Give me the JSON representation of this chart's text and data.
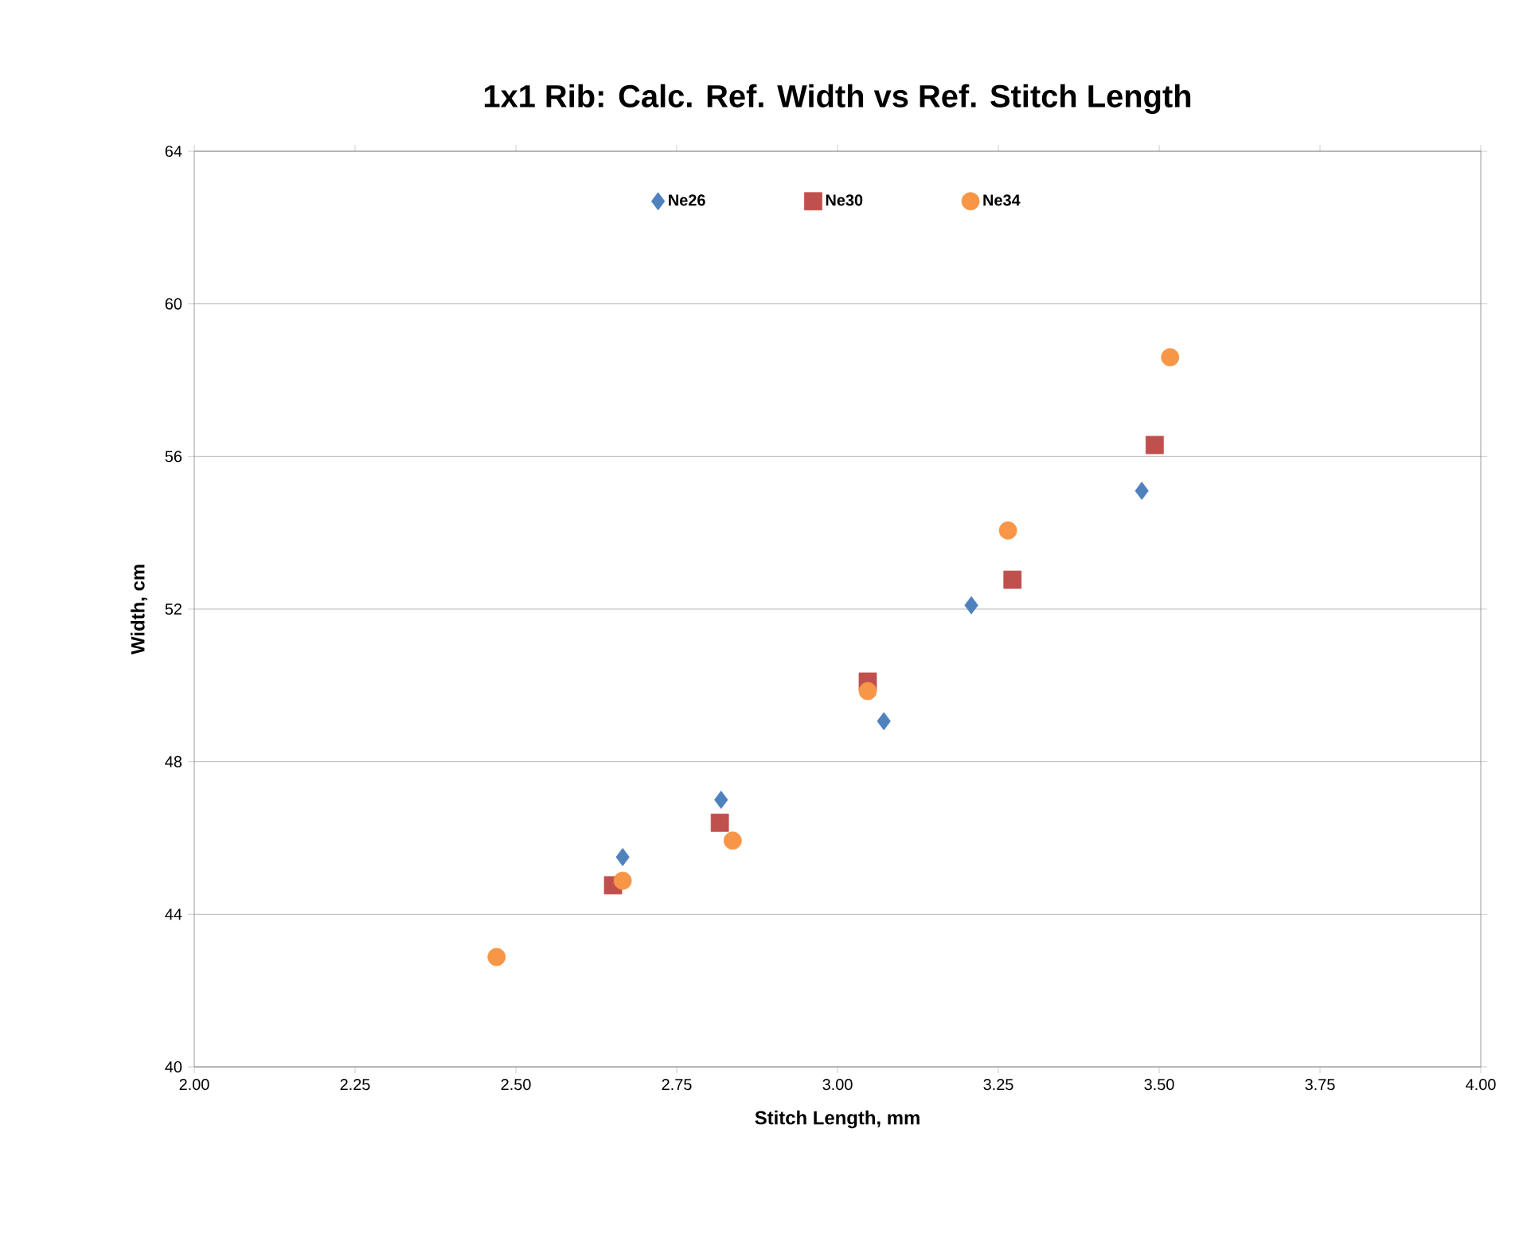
{
  "chart_data": {
    "type": "scatter",
    "title": "1x1 Rib: Calc. Ref. Width vs Ref. Stitch Length",
    "xlabel": "Stitch Length, mm",
    "ylabel": "Width, cm",
    "series": [
      {
        "name": "Ne26",
        "color": "#4f81bd",
        "marker": "diamond",
        "x": [
          2.666,
          2.819,
          3.072,
          3.208,
          3.473
        ],
        "values": [
          45.5,
          47.0,
          49.06,
          52.1,
          55.1
        ]
      },
      {
        "name": "Ne30",
        "color": "#c0504d",
        "marker": "square",
        "x": [
          2.651,
          2.817,
          3.047,
          3.272,
          3.493
        ],
        "values": [
          44.76,
          46.4,
          50.1,
          52.77,
          56.3
        ]
      },
      {
        "name": "Ne34",
        "color": "#f79646",
        "marker": "circle",
        "x": [
          2.47,
          2.666,
          2.837,
          3.047,
          3.265,
          3.517
        ],
        "values": [
          42.88,
          44.88,
          45.93,
          49.85,
          54.06,
          58.6
        ]
      }
    ],
    "xlim": [
      2.0,
      4.0
    ],
    "xticks": [
      {
        "value": 2.0,
        "label": "2.00"
      },
      {
        "value": 2.25,
        "label": "2.25"
      },
      {
        "value": 2.5,
        "label": "2.50"
      },
      {
        "value": 2.75,
        "label": "2.75"
      },
      {
        "value": 3.0,
        "label": "3.00"
      },
      {
        "value": 3.25,
        "label": "3.25"
      },
      {
        "value": 3.5,
        "label": "3.50"
      },
      {
        "value": 3.75,
        "label": "3.75"
      },
      {
        "value": 4.0,
        "label": "4.00"
      }
    ],
    "ylim": [
      40,
      64
    ],
    "yticks": [
      40,
      44,
      48,
      52,
      56,
      60,
      64
    ],
    "grid": "y",
    "legend": "top"
  }
}
